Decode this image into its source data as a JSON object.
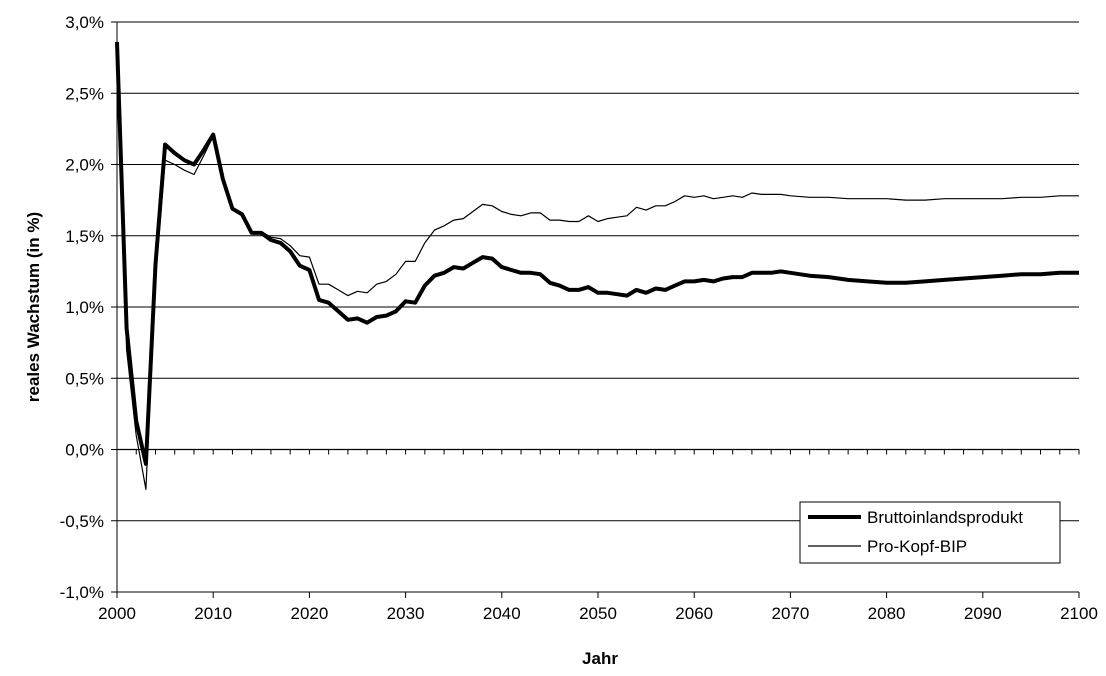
{
  "chart_data": {
    "type": "line",
    "title": "",
    "xlabel": "Jahr",
    "ylabel": "reales Wachstum (in %)",
    "xlim": [
      2000,
      2100
    ],
    "ylim": [
      -1.0,
      3.0
    ],
    "x_ticks": [
      2000,
      2010,
      2020,
      2030,
      2040,
      2050,
      2060,
      2070,
      2080,
      2090,
      2100
    ],
    "y_ticks": [
      -1.0,
      -0.5,
      0.0,
      0.5,
      1.0,
      1.5,
      2.0,
      2.5,
      3.0
    ],
    "y_tick_labels": [
      "-1,0%",
      "-0,5%",
      "0,0%",
      "0,5%",
      "1,0%",
      "1,5%",
      "2,0%",
      "2,5%",
      "3,0%"
    ],
    "x_tick_labels": [
      "2000",
      "2010",
      "2020",
      "2030",
      "2040",
      "2050",
      "2060",
      "2070",
      "2080",
      "2090",
      "2100"
    ],
    "grid": "horizontal",
    "legend_position": "bottom-right",
    "series": [
      {
        "name": "Bruttoinlandsprodukt",
        "style": "thick",
        "color": "#000000",
        "x": [
          2000,
          2001,
          2002,
          2003,
          2004,
          2005,
          2006,
          2007,
          2008,
          2009,
          2010,
          2011,
          2012,
          2013,
          2014,
          2015,
          2016,
          2017,
          2018,
          2019,
          2020,
          2021,
          2022,
          2023,
          2024,
          2025,
          2026,
          2027,
          2028,
          2029,
          2030,
          2031,
          2032,
          2033,
          2034,
          2035,
          2036,
          2037,
          2038,
          2039,
          2040,
          2041,
          2042,
          2043,
          2044,
          2045,
          2046,
          2047,
          2048,
          2049,
          2050,
          2051,
          2052,
          2053,
          2054,
          2055,
          2056,
          2057,
          2058,
          2059,
          2060,
          2061,
          2062,
          2063,
          2064,
          2065,
          2066,
          2067,
          2068,
          2069,
          2070,
          2072,
          2074,
          2076,
          2078,
          2080,
          2082,
          2084,
          2086,
          2088,
          2090,
          2092,
          2094,
          2096,
          2098,
          2100
        ],
        "y": [
          2.86,
          0.85,
          0.2,
          -0.1,
          1.3,
          2.14,
          2.08,
          2.03,
          2.0,
          2.1,
          2.21,
          1.9,
          1.69,
          1.65,
          1.52,
          1.52,
          1.47,
          1.45,
          1.39,
          1.29,
          1.26,
          1.05,
          1.03,
          0.97,
          0.91,
          0.92,
          0.89,
          0.93,
          0.94,
          0.97,
          1.04,
          1.03,
          1.15,
          1.22,
          1.24,
          1.28,
          1.27,
          1.31,
          1.35,
          1.34,
          1.28,
          1.26,
          1.24,
          1.24,
          1.23,
          1.17,
          1.15,
          1.12,
          1.12,
          1.14,
          1.1,
          1.1,
          1.09,
          1.08,
          1.12,
          1.1,
          1.13,
          1.12,
          1.15,
          1.18,
          1.18,
          1.19,
          1.18,
          1.2,
          1.21,
          1.21,
          1.24,
          1.24,
          1.24,
          1.25,
          1.24,
          1.22,
          1.21,
          1.19,
          1.18,
          1.17,
          1.17,
          1.18,
          1.19,
          1.2,
          1.21,
          1.22,
          1.23,
          1.23,
          1.24,
          1.24
        ]
      },
      {
        "name": "Pro-Kopf-BIP",
        "style": "thin",
        "color": "#000000",
        "x": [
          2000,
          2001,
          2002,
          2003,
          2004,
          2005,
          2006,
          2007,
          2008,
          2009,
          2010,
          2011,
          2012,
          2013,
          2014,
          2015,
          2016,
          2017,
          2018,
          2019,
          2020,
          2021,
          2022,
          2023,
          2024,
          2025,
          2026,
          2027,
          2028,
          2029,
          2030,
          2031,
          2032,
          2033,
          2034,
          2035,
          2036,
          2037,
          2038,
          2039,
          2040,
          2041,
          2042,
          2043,
          2044,
          2045,
          2046,
          2047,
          2048,
          2049,
          2050,
          2051,
          2052,
          2053,
          2054,
          2055,
          2056,
          2057,
          2058,
          2059,
          2060,
          2061,
          2062,
          2063,
          2064,
          2065,
          2066,
          2067,
          2068,
          2069,
          2070,
          2072,
          2074,
          2076,
          2078,
          2080,
          2082,
          2084,
          2086,
          2088,
          2090,
          2092,
          2094,
          2096,
          2098,
          2100
        ],
        "y": [
          2.77,
          0.7,
          0.1,
          -0.28,
          1.2,
          2.03,
          2.0,
          1.96,
          1.93,
          2.06,
          2.2,
          1.9,
          1.7,
          1.64,
          1.52,
          1.53,
          1.49,
          1.48,
          1.43,
          1.36,
          1.35,
          1.16,
          1.16,
          1.12,
          1.08,
          1.11,
          1.1,
          1.16,
          1.18,
          1.23,
          1.32,
          1.32,
          1.45,
          1.54,
          1.57,
          1.61,
          1.62,
          1.67,
          1.72,
          1.71,
          1.67,
          1.65,
          1.64,
          1.66,
          1.66,
          1.61,
          1.61,
          1.6,
          1.6,
          1.64,
          1.6,
          1.62,
          1.63,
          1.64,
          1.7,
          1.68,
          1.71,
          1.71,
          1.74,
          1.78,
          1.77,
          1.78,
          1.76,
          1.77,
          1.78,
          1.77,
          1.8,
          1.79,
          1.79,
          1.79,
          1.78,
          1.77,
          1.77,
          1.76,
          1.76,
          1.76,
          1.75,
          1.75,
          1.76,
          1.76,
          1.76,
          1.76,
          1.77,
          1.77,
          1.78,
          1.78
        ]
      }
    ]
  }
}
